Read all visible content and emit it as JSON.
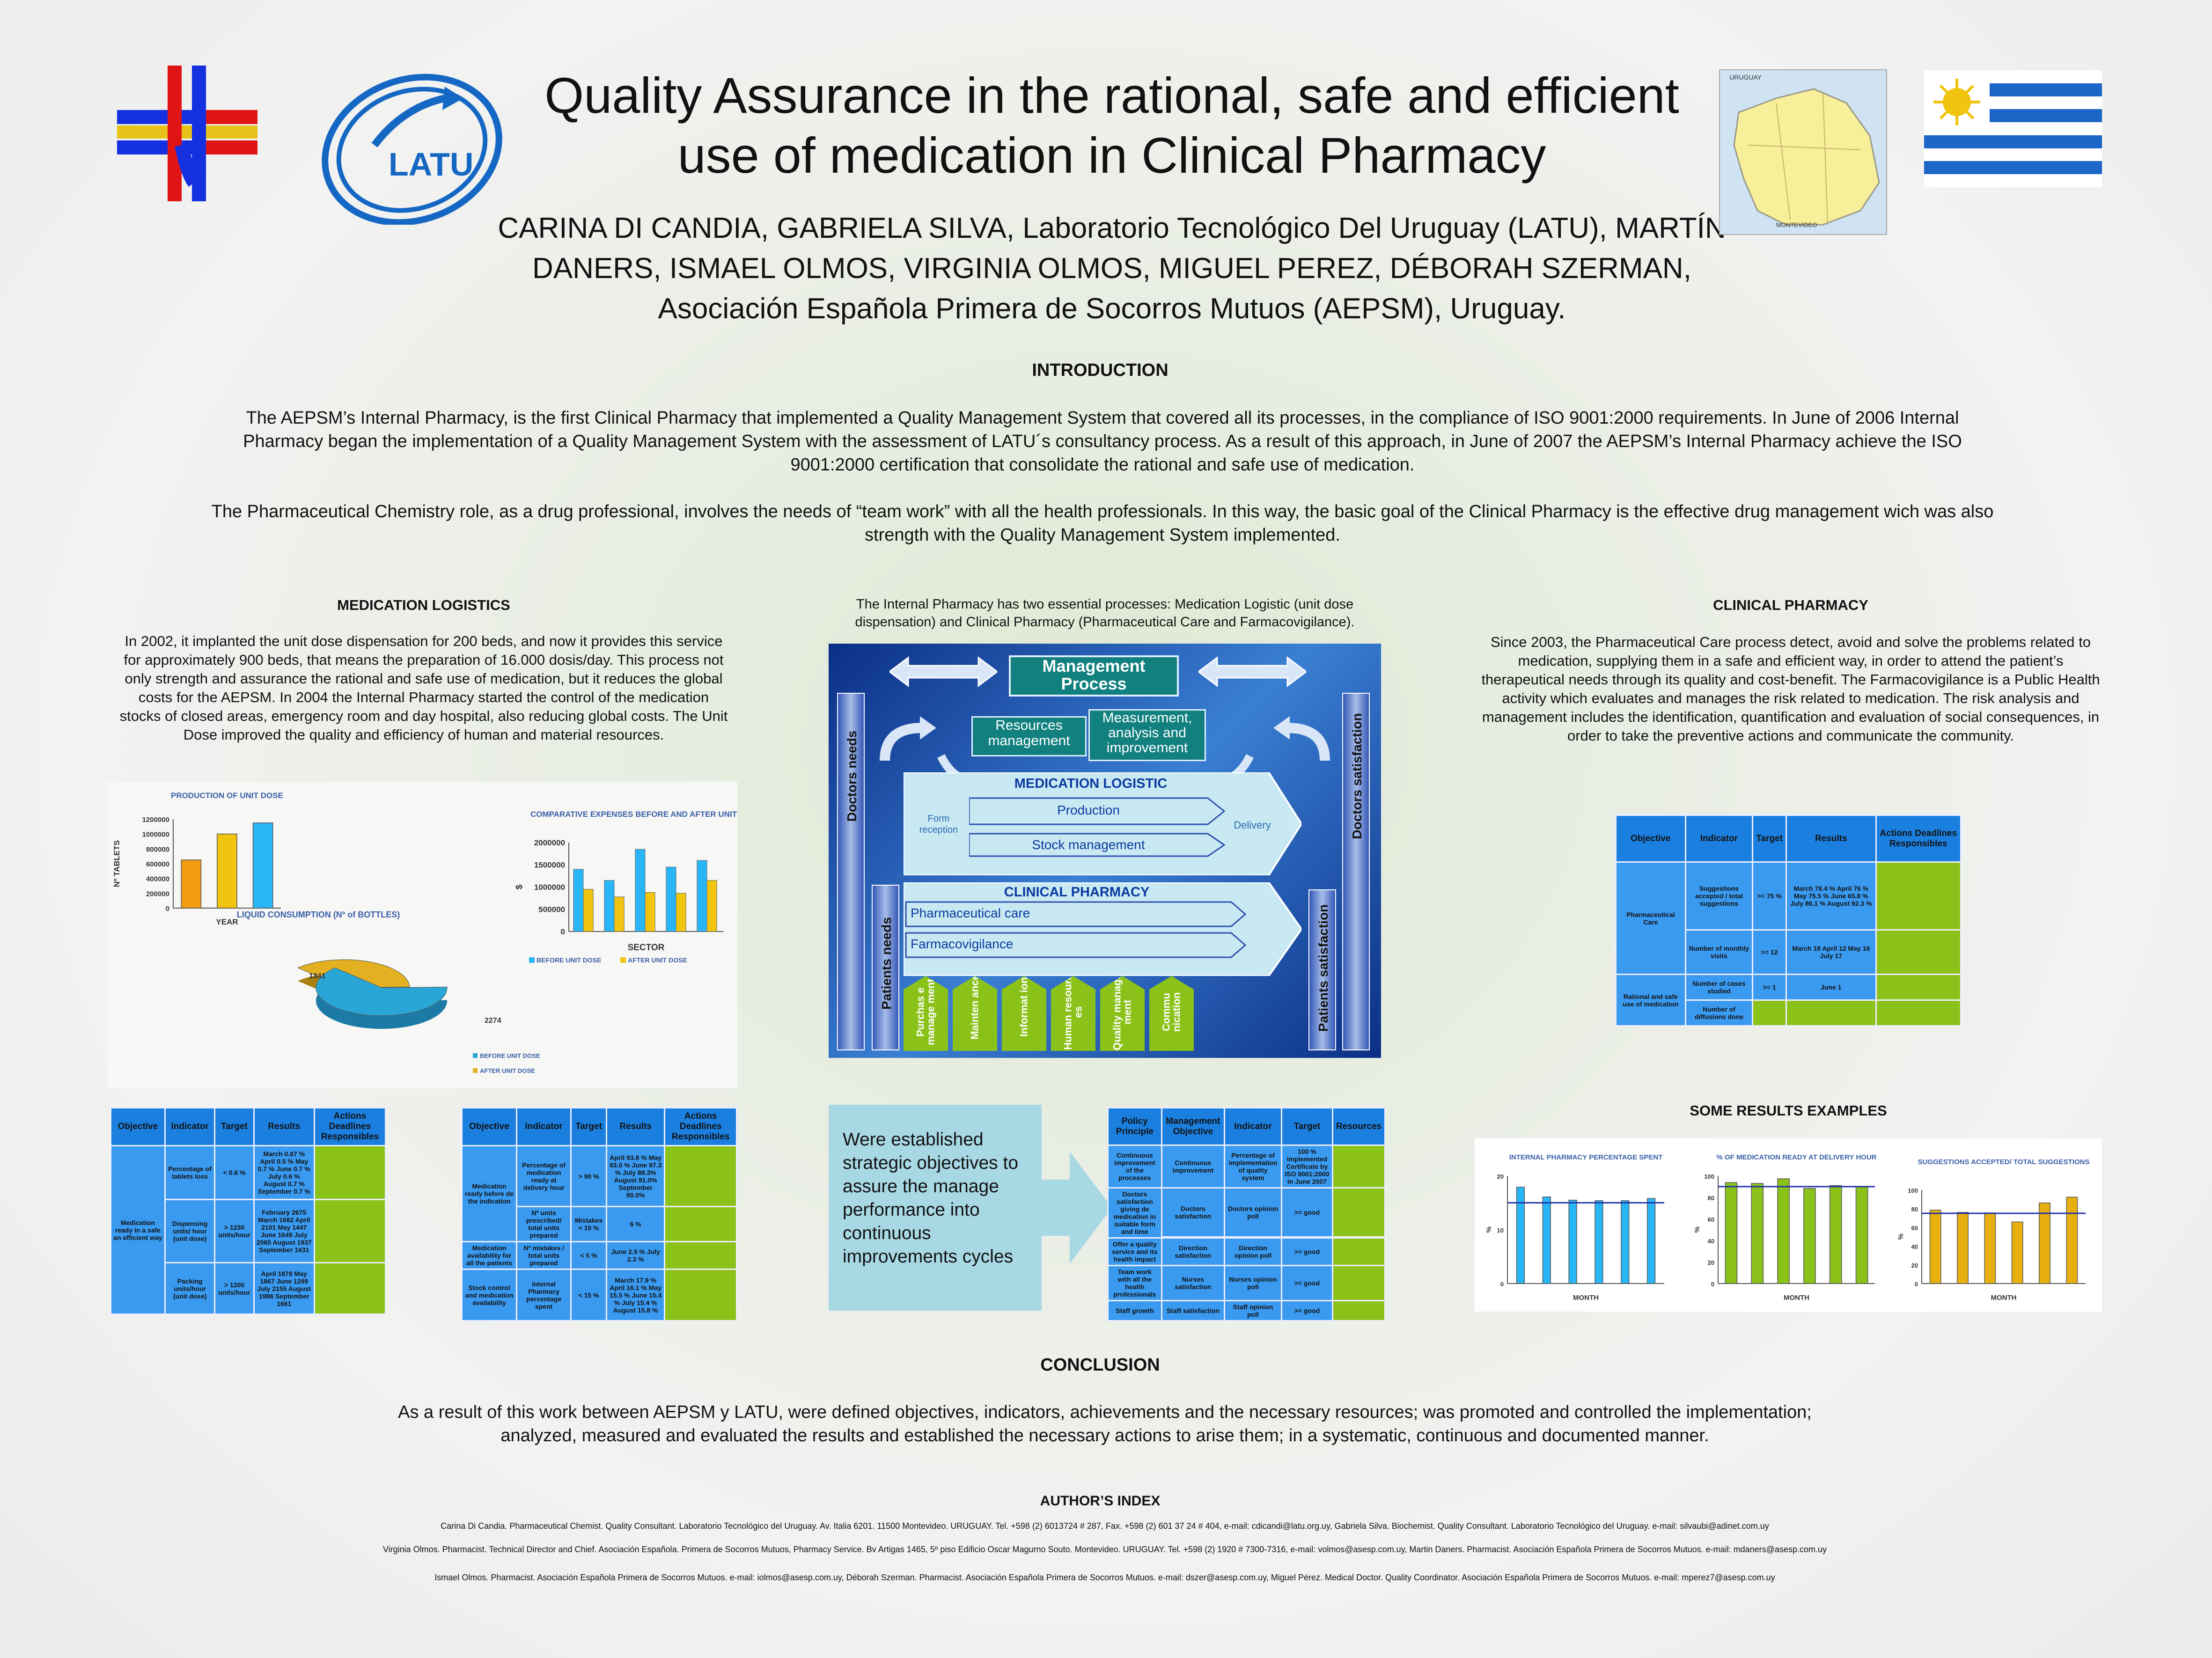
{
  "header": {
    "title": "Quality Assurance in the rational, safe and efficient use of medication in Clinical Pharmacy",
    "authors": "CARINA DI CANDIA, GABRIELA SILVA, Laboratorio Tecnológico Del Uruguay (LATU), MARTÍN DANERS, ISMAEL OLMOS, VIRGINIA OLMOS, MIGUEL PEREZ, DÉBORAH SZERMAN, Asociación Española Primera de Socorros Mutuos (AEPSM), Uruguay.",
    "latu_logo": "LATU",
    "map_label_top": "URUGUAY",
    "map_label_city": "MONTEVIDEO"
  },
  "introduction": {
    "heading": "INTRODUCTION",
    "p1": "The AEPSM’s Internal Pharmacy, is the first Clinical Pharmacy that implemented a Quality Management System that covered all its processes, in the compliance of ISO 9001:2000 requirements. In June of 2006 Internal Pharmacy began the implementation of a Quality Management System with the assessment of LATU´s consultancy process. As a result of this approach, in June of 2007 the AEPSM’s Internal Pharmacy achieve the ISO 9001:2000 certification that consolidate the rational and safe use of medication.",
    "p2": "The Pharmaceutical Chemistry role, as a drug professional, involves the needs of “team work” with all the health professionals. In this way, the basic goal of the Clinical Pharmacy is the effective drug management wich was also strength with the Quality Management System implemented."
  },
  "logistics": {
    "heading": "MEDICATION LOGISTICS",
    "text": "In 2002, it implanted the unit dose dispensation for 200 beds, and now it provides this service for approximately 900 beds, that means the preparation of 16.000 dosis/day. This process not only strength and assurance the rational and safe use of medication, but it reduces the global costs for the AEPSM. In 2004 the Internal Pharmacy started the control of the medication stocks of closed areas, emergency room and day hospital, also reducing global costs. The Unit Dose improved the quality and efficiency of human and material resources."
  },
  "center": {
    "intro": "The Internal Pharmacy has two essential processes: Medication Logistic (unit dose dispensation) and Clinical Pharmacy (Pharmaceutical Care and Farmacovigilance).",
    "mgmt": "Management Process",
    "resources": "Resources management",
    "measurement": "Measurement, analysis and improvement",
    "medlog": "MEDICATION LOGISTIC",
    "form": "Form reception",
    "production": "Production",
    "stock": "Stock management",
    "delivery": "Delivery",
    "clinph": "CLINICAL PHARMACY",
    "pcare": "Pharmaceutical care",
    "farmaco": "Farmacovigilance",
    "doctors_needs": "Doctors needs",
    "patients_needs": "Patients needs",
    "patients_sat": "Patients satisfaction",
    "doctors_sat": "Doctors satisfaction",
    "supports": [
      "Purchase management",
      "Maintenance",
      "Information",
      "Human resources",
      "Quality management",
      "Communication"
    ],
    "supports_display": [
      "Purchas e manage ment",
      "Mainten ance",
      "Informat ion",
      "Human resourc es",
      "Quality manage ment",
      "Commu nication"
    ],
    "established": "Were established strategic objectives to assure the manage performance into continuous improvements cycles"
  },
  "clinical": {
    "heading": "CLINICAL PHARMACY",
    "text": "Since 2003, the Pharmaceutical Care process detect, avoid and solve the problems related to medication, supplying them in a safe and efficient way, in order to attend the patient’s therapeutical needs through its quality and cost-benefit. The Farmacovigilance is a Public Health activity which evaluates and manages the risk related to medication. The risk analysis and management includes the identification, quantification and evaluation of social consequences, in order to take the preventive actions and communicate the community."
  },
  "results_heading": "SOME RESULTS EXAMPLES",
  "conclusion": {
    "heading": "CONCLUSION",
    "text": "As a result of this work between AEPSM y LATU, were defined objectives, indicators, achievements and the necessary resources; was promoted and controlled the implementation; analyzed, measured and evaluated the results and established the necessary actions to arise them; in a systematic, continuous and documented manner."
  },
  "authors_index": {
    "heading": "AUTHOR’S INDEX",
    "line1": "Carina Di Candia. Pharmaceutical Chemist. Quality Consultant. Laboratorio Tecnológico del Uruguay. Av. Italia 6201. 11500 Montevideo. URUGUAY. Tel. +598 (2) 6013724 # 287, Fax. +598 (2) 601 37 24 # 404, e-mail: cdicandi@latu.org.uy, Gabriela Silva. Biochemist. Quality Consultant. Laboratorio Tecnológico del Uruguay. e-mail: silvaubi@adinet.com.uy",
    "line2": "Virginia Olmos. Pharmacist. Technical Director and Chief. Asociación Española. Primera de Socorros Mutuos, Pharmacy Service. Bv Artigas 1465, 5º piso Edificio Oscar Magurno Souto. Montevideo. URUGUAY. Tel. +598 (2) 1920 # 7300-7316, e-mail: volmos@asesp.com.uy, Martin Daners. Pharmacist. Asociación Española Primera de Socorros Mutuos. e-mail: mdaners@asesp.com.uy",
    "line3": "Ismael Olmos. Pharmacist. Asociación Española Primera de Socorros Mutuos. e-mail: iolmos@asesp.com.uy, Déborah Szerman. Pharmacist. Asociación Española Primera de Socorros Mutuos. e-mail: dszer@asesp.com.uy, Miguel Pérez. Medical Doctor. Quality Coordinator. Asociación Española Primera de Socorros Mutuos. e-mail: mperez7@asesp.com.uy"
  },
  "tables": {
    "headers": [
      "Objective",
      "Indicator",
      "Target",
      "Results",
      "Actions Deadlines Responsibles"
    ],
    "logA": [
      [
        "Medication ready in a safe an efficient way",
        "Percentage of tablets loss",
        "< 0.6 %",
        "March 0.67 % April 0.5 % May 0.7 % June 0.7 % July 0.6 % August 0.7 % September 0.7 %"
      ],
      [
        "",
        "Dispensing units/ hour (unit dose)",
        "> 1230 units/hour",
        "February 2675 March 1682 April 2101 May 1447 June 1649 July 2065 August 1937 September 1631"
      ],
      [
        "",
        "Packing units/hour (unit dose)",
        "> 1200 units/hour",
        "April 1878 May 1867 June 1299 July 2155 August 1986 September 1661"
      ]
    ],
    "logB": [
      [
        "Medication ready before de the indication",
        "Percentage of medication ready at delivery hour",
        "> 90 %",
        "April 93.8 % May 93.0 % June 97.3 % July 88.3% August 91.0% September 90.0%"
      ],
      [
        "",
        "Nº units prescribed/ total units prepared",
        "Mistakes < 10 %",
        "6 %"
      ],
      [
        "Medication availability for all the patients",
        "Nº mistakes / total units prepared",
        "< 5 %",
        "June 2.5 % July 2.3 %"
      ],
      [
        "Stock control and medication availability",
        "Internal Pharmacy percentage spent",
        "< 15 %",
        "March 17.9 % April 16.1 % May 15.5 % June 15.4 % July 15.4 % August 15.8 %"
      ]
    ],
    "policy_headers": [
      "Policy Principle",
      "Management Objective",
      "Indicator",
      "Target",
      "Resources"
    ],
    "policy": [
      [
        "Continuous improvement of the processes",
        "Continuous improvement",
        "Percentage of implementation of quality system",
        "100 % implemented Certificate by ISO 9001:2000 in June 2007"
      ],
      [
        "Doctors satisfaction giving de medication in suitable form and time",
        "Doctors satisfaction",
        "Doctors opinion poll",
        ">= good"
      ],
      [
        "Offer a quality service and its health impact",
        "Direction satisfaction",
        "Direction opinion poll",
        ">= good"
      ],
      [
        "Team work with all the health professionals",
        "Nurses satisfaction",
        "Nurses opinion poll",
        ">= good"
      ],
      [
        "Staff growth",
        "Staff satisfaction",
        "Staff opinion poll",
        ">= good"
      ]
    ],
    "clin": [
      [
        "Pharmaceutical Care",
        "Suggestions accepted / total suggestions",
        ">= 75 %",
        "March 78.4 % April 76 % May 75.5 % June 65.8 % July 86.1 % August 92.3 %"
      ],
      [
        "",
        "Number of monthly visits",
        ">= 12",
        "March 18 April 12 May 16 July 17"
      ],
      [
        "Rational and safe use of medication",
        "Number of cases studied",
        ">= 1",
        "June 1"
      ],
      [
        "",
        "Number of diffusions done",
        "",
        ""
      ]
    ]
  },
  "chart_data": [
    {
      "type": "bar",
      "title": "PRODUCTION OF UNIT DOSE",
      "xlabel": "YEAR",
      "ylabel": "Nº TABLETS",
      "ylim": [
        0,
        1200000
      ],
      "categories": [
        "1",
        "2",
        "3"
      ],
      "values": [
        650000,
        1000000,
        1150000
      ],
      "colors": [
        "#f39c12",
        "#f1c40f",
        "#29b6f6"
      ],
      "yticks": [
        "0",
        "200000",
        "400000",
        "600000",
        "800000",
        "1000000",
        "1200000"
      ]
    },
    {
      "type": "bar",
      "title": "COMPARATIVE EXPENSES BEFORE AND AFTER UNIT DOSE",
      "xlabel": "SECTOR",
      "ylabel": "$",
      "ylim": [
        0,
        2000000
      ],
      "categories": [
        "1",
        "2",
        "3",
        "4",
        "5"
      ],
      "series": [
        {
          "name": "BEFORE UNIT DOSE",
          "values": [
            1400000,
            1150000,
            1850000,
            1450000,
            1600000
          ],
          "color": "#29b6f6"
        },
        {
          "name": "AFTER UNIT DOSE",
          "values": [
            950000,
            780000,
            880000,
            860000,
            1150000
          ],
          "color": "#f1c40f"
        }
      ],
      "yticks": [
        "0",
        "500000",
        "1000000",
        "1500000",
        "2000000"
      ]
    },
    {
      "type": "pie",
      "title": "LIQUID CONSUMPTION (Nº of BOTTLES)",
      "values": [
        1341,
        2274
      ],
      "labels": [
        "1341",
        "2274"
      ],
      "legend": [
        "BEFORE UNIT DOSE",
        "AFTER UNIT DOSE"
      ],
      "colors": [
        "#e3b022",
        "#29a6d6"
      ]
    },
    {
      "type": "bar",
      "title": "INTERNAL PHARMACY PERCENTAGE SPENT",
      "xlabel": "MONTH",
      "ylabel": "%",
      "ylim": [
        0,
        20
      ],
      "values": [
        17.9,
        16.1,
        15.5,
        15.4,
        15.4,
        15.8
      ],
      "target": 15,
      "color": "#29b6f6",
      "yticks": [
        "0",
        "10",
        "20"
      ]
    },
    {
      "type": "bar",
      "title": "% OF MEDICATION READY AT DELIVERY HOUR",
      "xlabel": "MONTH",
      "ylabel": "%",
      "ylim": [
        0,
        100
      ],
      "values": [
        93.8,
        93.0,
        97.3,
        88.3,
        91.0,
        90.0
      ],
      "target": 90,
      "color": "#8bc21a",
      "yticks": [
        "0",
        "20",
        "40",
        "60",
        "80",
        "100"
      ]
    },
    {
      "type": "bar",
      "title": "SUGGESTIONS ACCEPTED/ TOTAL SUGGESTIONS",
      "xlabel": "MONTH",
      "ylabel": "%",
      "ylim": [
        0,
        100
      ],
      "values": [
        78.4,
        76,
        75.5,
        65.8,
        86.1,
        92.3
      ],
      "target": 75,
      "color": "#e8b00f",
      "yticks": [
        "0",
        "20",
        "40",
        "60",
        "80",
        "100"
      ]
    }
  ]
}
